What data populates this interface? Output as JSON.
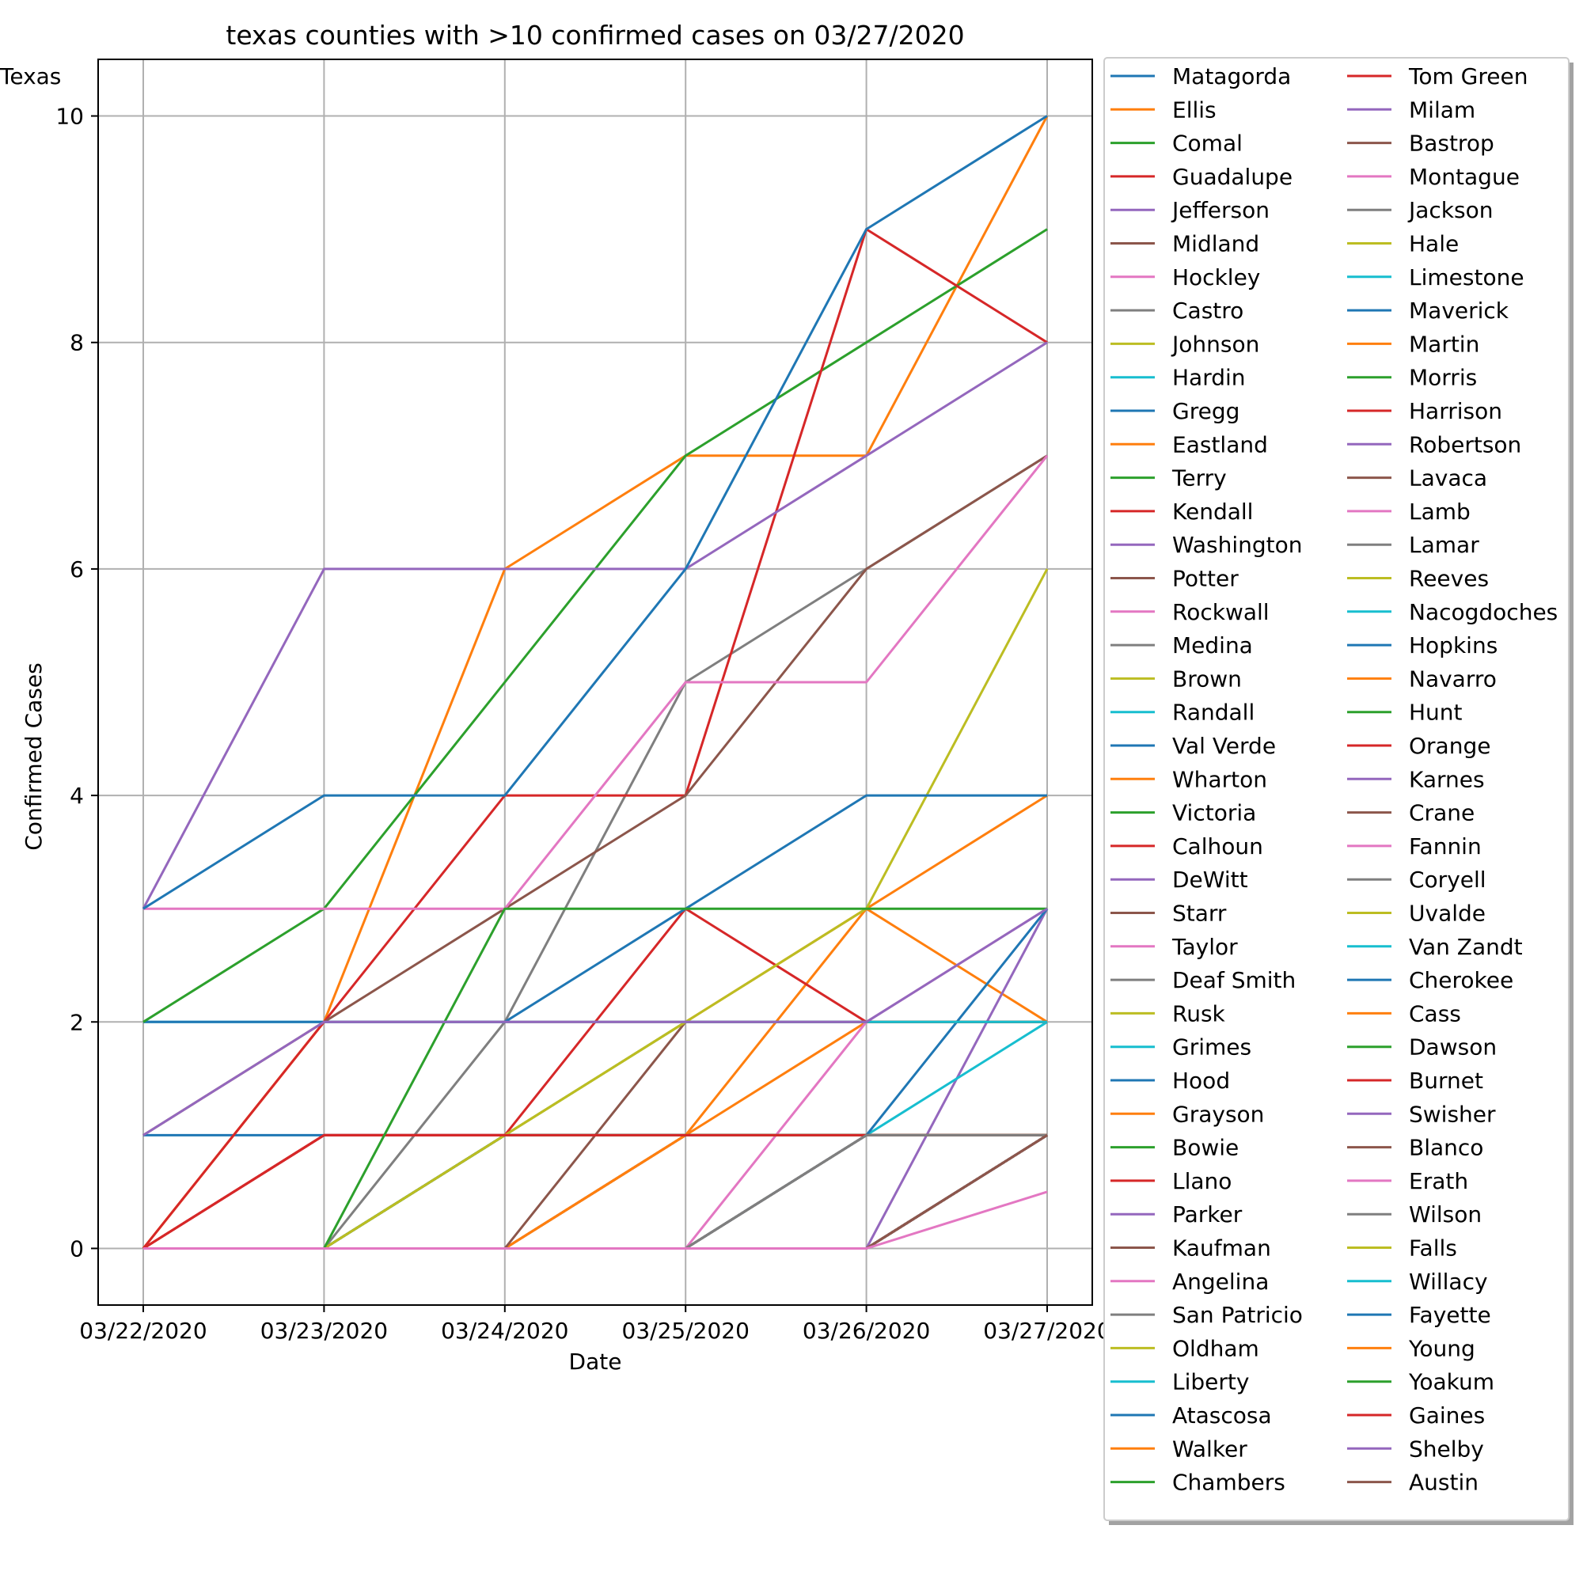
{
  "chart_data": {
    "type": "line",
    "title": "texas counties with >10 confirmed cases on 03/27/2020",
    "xlabel": "Date",
    "ylabel": "Confirmed Cases",
    "x": [
      "03/22/2020",
      "03/23/2020",
      "03/24/2020",
      "03/25/2020",
      "03/26/2020",
      "03/27/2020"
    ],
    "ylim": [
      -0.5,
      10.5
    ],
    "yticks": [
      0,
      2,
      4,
      6,
      8,
      10
    ],
    "grid": true,
    "legend_placement": "outside-right",
    "legend_columns": 2,
    "series": [
      {
        "name": "Matagorda",
        "color": "#1f77b4",
        "values": [
          0,
          0,
          0,
          0,
          1,
          1
        ]
      },
      {
        "name": "Ellis",
        "color": "#ff7f0e",
        "values": [
          0,
          0,
          0,
          1,
          2,
          2
        ]
      },
      {
        "name": "Comal",
        "color": "#2ca02c",
        "values": [
          0,
          0,
          1,
          2,
          2,
          2
        ]
      },
      {
        "name": "Guadalupe",
        "color": "#d62728",
        "values": [
          0,
          0,
          1,
          1,
          1,
          1
        ]
      },
      {
        "name": "Jefferson",
        "color": "#9467bd",
        "values": [
          0,
          0,
          0,
          0,
          1,
          1
        ]
      },
      {
        "name": "Midland",
        "color": "#8c564b",
        "values": [
          0,
          0,
          0,
          1,
          1,
          1
        ]
      },
      {
        "name": "Hockley",
        "color": "#e377c2",
        "values": [
          0,
          0,
          0,
          0,
          0,
          1
        ]
      },
      {
        "name": "Castro",
        "color": "#7f7f7f",
        "values": [
          0,
          0,
          0,
          0,
          0,
          1
        ]
      },
      {
        "name": "Johnson",
        "color": "#bcbd22",
        "values": [
          0,
          0,
          1,
          2,
          2,
          2
        ]
      },
      {
        "name": "Hardin",
        "color": "#17becf",
        "values": [
          0,
          0,
          0,
          0,
          1,
          1
        ]
      },
      {
        "name": "Gregg",
        "color": "#1f77b4",
        "values": [
          0,
          0,
          1,
          1,
          1,
          1
        ]
      },
      {
        "name": "Eastland",
        "color": "#ff7f0e",
        "values": [
          0,
          0,
          0,
          0,
          0,
          1
        ]
      },
      {
        "name": "Terry",
        "color": "#2ca02c",
        "values": [
          0,
          0,
          0,
          0,
          0,
          1
        ]
      },
      {
        "name": "Kendall",
        "color": "#d62728",
        "values": [
          0,
          1,
          1,
          1,
          1,
          1
        ]
      },
      {
        "name": "Washington",
        "color": "#9467bd",
        "values": [
          0,
          0,
          0,
          0,
          0,
          1
        ]
      },
      {
        "name": "Potter",
        "color": "#8c564b",
        "values": [
          0,
          0,
          0,
          1,
          1,
          1
        ]
      },
      {
        "name": "Rockwall",
        "color": "#e377c2",
        "values": [
          0,
          0,
          0,
          0,
          1,
          1
        ]
      },
      {
        "name": "Medina",
        "color": "#7f7f7f",
        "values": [
          0,
          0,
          0,
          0,
          1,
          1
        ]
      },
      {
        "name": "Brown",
        "color": "#bcbd22",
        "values": [
          0,
          0,
          0,
          0,
          1,
          1
        ]
      },
      {
        "name": "Randall",
        "color": "#17becf",
        "values": [
          0,
          0,
          0,
          0,
          1,
          1
        ]
      },
      {
        "name": "Val Verde",
        "color": "#1f77b4",
        "values": [
          0,
          0,
          0,
          0,
          0,
          1
        ]
      },
      {
        "name": "Wharton",
        "color": "#ff7f0e",
        "values": [
          0,
          0,
          0,
          1,
          1,
          1
        ]
      },
      {
        "name": "Victoria",
        "color": "#2ca02c",
        "values": [
          0,
          0,
          1,
          1,
          1,
          1
        ]
      },
      {
        "name": "Calhoun",
        "color": "#d62728",
        "values": [
          0,
          0,
          0,
          0,
          0,
          1
        ]
      },
      {
        "name": "DeWitt",
        "color": "#9467bd",
        "values": [
          0,
          0,
          0,
          0,
          0,
          1
        ]
      },
      {
        "name": "Starr",
        "color": "#8c564b",
        "values": [
          0,
          0,
          0,
          0,
          1,
          1
        ]
      },
      {
        "name": "Taylor",
        "color": "#e377c2",
        "values": [
          0,
          0,
          0,
          0,
          1,
          1
        ]
      },
      {
        "name": "Deaf Smith",
        "color": "#7f7f7f",
        "values": [
          0,
          0,
          0,
          0,
          0,
          1
        ]
      },
      {
        "name": "Rusk",
        "color": "#bcbd22",
        "values": [
          0,
          0,
          0,
          0,
          0,
          1
        ]
      },
      {
        "name": "Grimes",
        "color": "#17becf",
        "values": [
          0,
          0,
          0,
          0,
          0,
          1
        ]
      },
      {
        "name": "Hood",
        "color": "#1f77b4",
        "values": [
          0,
          0,
          0,
          0,
          0,
          1
        ]
      },
      {
        "name": "Grayson",
        "color": "#ff7f0e",
        "values": [
          0,
          2,
          2,
          2,
          3,
          2
        ]
      },
      {
        "name": "Bowie",
        "color": "#2ca02c",
        "values": [
          0,
          0,
          0,
          0,
          0,
          1
        ]
      },
      {
        "name": "Llano",
        "color": "#d62728",
        "values": [
          0,
          1,
          1,
          1,
          1,
          1
        ]
      },
      {
        "name": "Parker",
        "color": "#9467bd",
        "values": [
          0,
          0,
          0,
          0,
          0,
          3
        ]
      },
      {
        "name": "Kaufman",
        "color": "#8c564b",
        "values": [
          0,
          0,
          0,
          0,
          1,
          1
        ]
      },
      {
        "name": "Angelina",
        "color": "#e377c2",
        "values": [
          0,
          0,
          0,
          0,
          2,
          3
        ]
      },
      {
        "name": "San Patricio",
        "color": "#7f7f7f",
        "values": [
          0,
          0,
          2,
          5,
          6,
          7
        ]
      },
      {
        "name": "Oldham",
        "color": "#bcbd22",
        "values": [
          0,
          0,
          0,
          0,
          0,
          1
        ]
      },
      {
        "name": "Liberty",
        "color": "#17becf",
        "values": [
          0,
          0,
          0,
          0,
          1,
          2
        ]
      },
      {
        "name": "Atascosa",
        "color": "#1f77b4",
        "values": [
          1,
          1,
          1,
          1,
          1,
          3
        ]
      },
      {
        "name": "Walker",
        "color": "#ff7f0e",
        "values": [
          0,
          0,
          0,
          1,
          3,
          4
        ]
      },
      {
        "name": "Chambers",
        "color": "#2ca02c",
        "values": [
          0,
          0,
          1,
          1,
          1,
          1
        ]
      },
      {
        "name": "Tom Green",
        "color": "#d62728",
        "values": [
          0,
          1,
          1,
          3,
          2,
          2
        ]
      },
      {
        "name": "Milam",
        "color": "#9467bd",
        "values": [
          0,
          0,
          0,
          0,
          0,
          1
        ]
      },
      {
        "name": "Bastrop",
        "color": "#8c564b",
        "values": [
          0,
          0,
          0,
          2,
          2,
          2
        ]
      },
      {
        "name": "Montague",
        "color": "#e377c2",
        "values": [
          0,
          0,
          0,
          0,
          0,
          1
        ]
      },
      {
        "name": "Jackson",
        "color": "#7f7f7f",
        "values": [
          0,
          0,
          0,
          0,
          0,
          1
        ]
      },
      {
        "name": "Hale",
        "color": "#bcbd22",
        "values": [
          0,
          0,
          1,
          2,
          3,
          6
        ]
      },
      {
        "name": "Limestone",
        "color": "#17becf",
        "values": [
          0,
          0,
          0,
          0,
          0,
          1
        ]
      },
      {
        "name": "Maverick",
        "color": "#1f77b4",
        "values": [
          0,
          0,
          0,
          0,
          0,
          1
        ]
      },
      {
        "name": "Martin",
        "color": "#ff7f0e",
        "values": [
          0,
          0,
          0,
          0,
          0,
          1
        ]
      },
      {
        "name": "Morris",
        "color": "#2ca02c",
        "values": [
          0,
          0,
          0,
          0,
          0,
          1
        ]
      },
      {
        "name": "Harrison",
        "color": "#d62728",
        "values": [
          0,
          1,
          1,
          1,
          1,
          1
        ]
      },
      {
        "name": "Robertson",
        "color": "#9467bd",
        "values": [
          0,
          0,
          0,
          0,
          0,
          1
        ]
      },
      {
        "name": "Lavaca",
        "color": "#8c564b",
        "values": [
          0,
          0,
          0,
          0,
          1,
          1
        ]
      },
      {
        "name": "Lamb",
        "color": "#e377c2",
        "values": [
          0,
          0,
          0,
          0,
          0,
          1
        ]
      },
      {
        "name": "Lamar",
        "color": "#7f7f7f",
        "values": [
          0,
          0,
          0,
          0,
          0,
          1
        ]
      },
      {
        "name": "Reeves",
        "color": "#bcbd22",
        "values": [
          0,
          0,
          0,
          0,
          0,
          1
        ]
      },
      {
        "name": "Nacogdoches",
        "color": "#17becf",
        "values": [
          2,
          2,
          2,
          2,
          2,
          2
        ]
      },
      {
        "name": "Hopkins",
        "color": "#1f77b4",
        "values": [
          2,
          2,
          2,
          3,
          4,
          4
        ]
      },
      {
        "name": "Navarro",
        "color": "#ff7f0e",
        "values": [
          0,
          2,
          6,
          7,
          7,
          10
        ]
      },
      {
        "name": "Hunt",
        "color": "#2ca02c",
        "values": [
          2,
          3,
          5,
          7,
          8,
          9
        ]
      },
      {
        "name": "Orange",
        "color": "#d62728",
        "values": [
          0,
          2,
          4,
          4,
          9,
          8
        ]
      },
      {
        "name": "Karnes",
        "color": "#9467bd",
        "values": [
          3,
          6,
          6,
          6,
          7,
          8
        ]
      },
      {
        "name": "Crane",
        "color": "#8c564b",
        "values": [
          1,
          2,
          3,
          4,
          6,
          7
        ]
      },
      {
        "name": "Fannin",
        "color": "#e377c2",
        "values": [
          3,
          3,
          3,
          5,
          5,
          7
        ]
      },
      {
        "name": "Coryell",
        "color": "#7f7f7f",
        "values": [
          0,
          0,
          0,
          0,
          1,
          1
        ]
      },
      {
        "name": "Uvalde",
        "color": "#bcbd22",
        "values": [
          0,
          0,
          0,
          0,
          0,
          1
        ]
      },
      {
        "name": "Van Zandt",
        "color": "#17becf",
        "values": [
          0,
          0,
          0,
          0,
          0,
          1
        ]
      },
      {
        "name": "Cherokee",
        "color": "#1f77b4",
        "values": [
          3,
          4,
          4,
          6,
          9,
          10
        ]
      },
      {
        "name": "Cass",
        "color": "#ff7f0e",
        "values": [
          0,
          0,
          0,
          0,
          0,
          1
        ]
      },
      {
        "name": "Dawson",
        "color": "#2ca02c",
        "values": [
          0,
          0,
          3,
          3,
          3,
          3
        ]
      },
      {
        "name": "Burnet",
        "color": "#d62728",
        "values": [
          0,
          0,
          0,
          0,
          0,
          1
        ]
      },
      {
        "name": "Swisher",
        "color": "#9467bd",
        "values": [
          1,
          2,
          2,
          2,
          2,
          3
        ]
      },
      {
        "name": "Blanco",
        "color": "#8c564b",
        "values": [
          0,
          0,
          0,
          0,
          0,
          1
        ]
      },
      {
        "name": "Erath",
        "color": "#e377c2",
        "values": [
          0,
          0,
          0,
          0,
          0,
          1
        ]
      },
      {
        "name": "Wilson",
        "color": "#7f7f7f",
        "values": [
          0,
          0,
          0,
          0,
          0,
          1
        ]
      },
      {
        "name": "Falls",
        "color": "#bcbd22",
        "values": [
          0,
          0,
          0,
          0,
          0,
          1
        ]
      },
      {
        "name": "Willacy",
        "color": "#17becf",
        "values": [
          0,
          0,
          0,
          0,
          0,
          1
        ]
      },
      {
        "name": "Fayette",
        "color": "#1f77b4",
        "values": [
          0,
          0,
          0,
          0,
          0,
          1
        ]
      },
      {
        "name": "Young",
        "color": "#ff7f0e",
        "values": [
          0,
          0,
          0,
          0,
          0,
          1
        ]
      },
      {
        "name": "Yoakum",
        "color": "#2ca02c",
        "values": [
          0,
          0,
          0,
          0,
          0,
          1
        ]
      },
      {
        "name": "Gaines",
        "color": "#d62728",
        "values": [
          0,
          0,
          0,
          0,
          0,
          1
        ]
      },
      {
        "name": "Shelby",
        "color": "#9467bd",
        "values": [
          0,
          0,
          0,
          0,
          0,
          1
        ]
      },
      {
        "name": "Austin",
        "color": "#8c564b",
        "values": [
          0,
          0,
          0,
          0,
          0,
          1
        ]
      },
      {
        "name": "Texas",
        "color": "#e377c2",
        "values": [
          0,
          0,
          0,
          0,
          0,
          0.5
        ]
      }
    ]
  }
}
